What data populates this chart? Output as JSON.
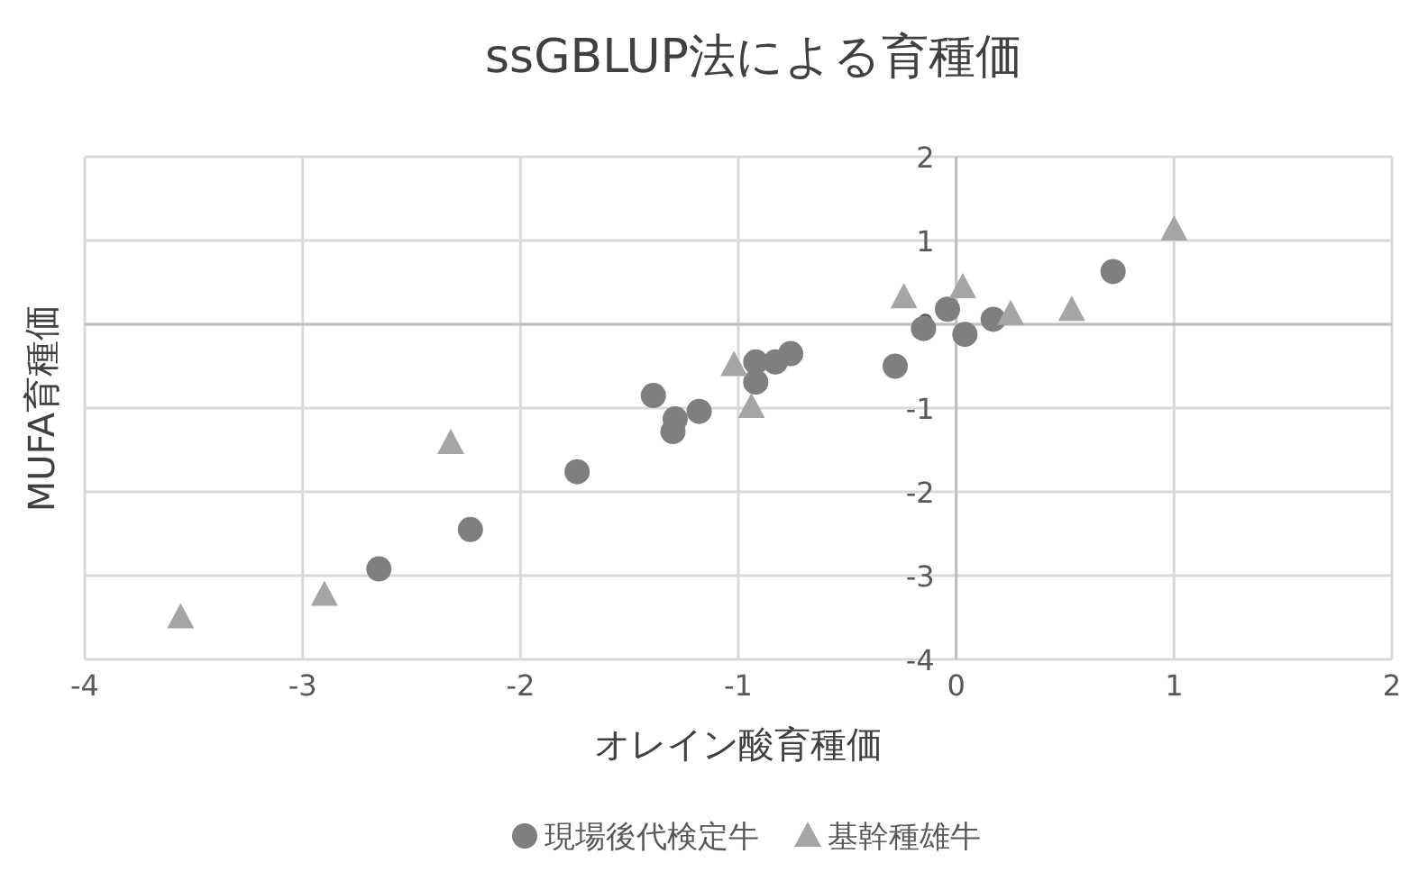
{
  "chart_data": {
    "type": "scatter",
    "title": "ssGBLUP法による育種価",
    "xlabel": "オレイン酸育種価",
    "ylabel": "MUFA育種価",
    "xlim": [
      -4,
      2
    ],
    "ylim": [
      -4,
      2
    ],
    "xticks": [
      -4,
      -3,
      -2,
      -1,
      0,
      1,
      2
    ],
    "yticks": [
      -4,
      -3,
      -2,
      -1,
      0,
      1,
      2
    ],
    "grid": true,
    "legend": "bottom",
    "series": [
      {
        "name": "現場後代検定牛",
        "color": "#7f7f7f",
        "marker": "circle",
        "x": [
          -1.39,
          -1.29,
          -1.3,
          -1.18,
          -1.74,
          -2.23,
          -2.65,
          -0.92,
          -0.92,
          -0.83,
          -0.76,
          -0.28,
          -0.15,
          -0.04,
          0.04,
          0.17,
          0.72
        ],
        "values": [
          -0.85,
          -1.13,
          -1.28,
          -1.04,
          -1.76,
          -2.45,
          -2.92,
          -0.45,
          -0.69,
          -0.45,
          -0.35,
          -0.5,
          -0.05,
          0.18,
          -0.12,
          0.06,
          0.63
        ]
      },
      {
        "name": "基幹種雄牛",
        "color": "#a5a5a5",
        "marker": "triangle",
        "x": [
          -3.56,
          -2.9,
          -2.32,
          -1.02,
          -0.94,
          -0.24,
          0.03,
          0.25,
          0.53,
          1.0
        ],
        "values": [
          -3.5,
          -3.23,
          -1.42,
          -0.49,
          -0.99,
          0.32,
          0.44,
          0.12,
          0.17,
          1.13
        ]
      }
    ]
  }
}
